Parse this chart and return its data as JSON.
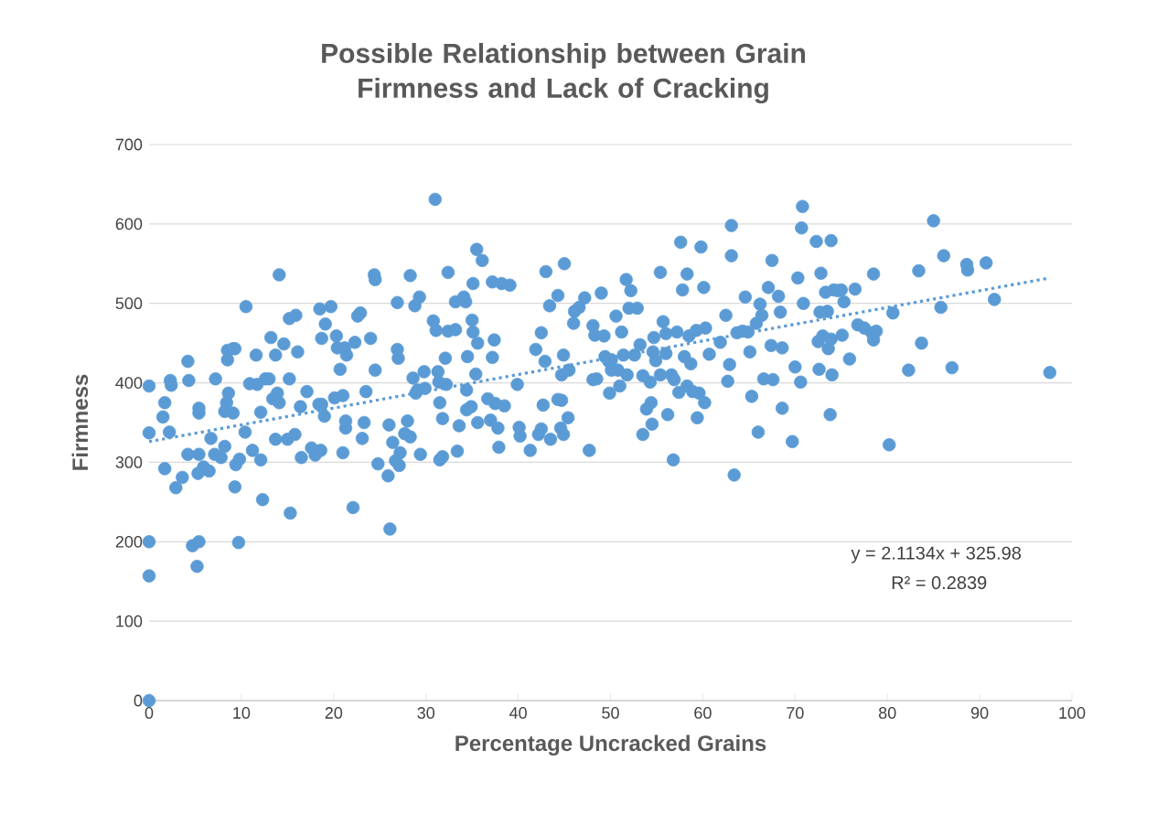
{
  "chart_data": {
    "type": "scatter",
    "title": "Possible Relationship between Grain Firmness and Lack of Cracking",
    "xlabel": "Percentage Uncracked Grains",
    "ylabel": "Firmness",
    "xlim": [
      0,
      100
    ],
    "xticks": [
      0,
      10,
      20,
      30,
      40,
      50,
      60,
      70,
      80,
      90,
      100
    ],
    "ylim": [
      0,
      700
    ],
    "yticks": [
      0,
      100,
      200,
      300,
      400,
      500,
      600,
      700
    ],
    "grid": "y",
    "marker": "circle",
    "annotations": [
      "y = 2.1134x + 325.98",
      "R² = 0.2839"
    ],
    "series": [
      {
        "color": "#5b9bd5",
        "x": [
          0,
          0,
          0,
          0,
          0,
          1.7,
          1.5,
          2.3,
          2.4,
          2.2,
          1.7,
          2.9,
          3.6,
          4.2,
          4.3,
          4.2,
          4.7,
          5.4,
          5.2,
          5.4,
          5.4,
          5.4,
          5.3,
          5.9,
          6.5,
          6.7,
          7.2,
          7.1,
          7.8,
          8.2,
          8.2,
          8.4,
          8.5,
          8.5,
          8.6,
          9.1,
          9.3,
          9.1,
          9.3,
          9.4,
          9.8,
          9.7,
          10.5,
          10.4,
          10.9,
          11.2,
          11.6,
          11.7,
          12.1,
          12.3,
          12.1,
          12.6,
          13.0,
          13.2,
          13.4,
          13.7,
          13.7,
          14.1,
          13.9,
          14.1,
          14.6,
          15.0,
          15.2,
          15.2,
          15.3,
          15.9,
          16.1,
          15.8,
          16.5,
          16.4,
          17.1,
          17.6,
          18.0,
          18.4,
          18.7,
          18.5,
          19.0,
          18.7,
          19.1,
          18.6,
          19.7,
          20.1,
          20.3,
          20.7,
          20.4,
          21.0,
          21.2,
          21.0,
          21.3,
          21.3,
          21.4,
          22.1,
          22.6,
          22.9,
          22.3,
          23.1,
          23.3,
          23.5,
          24.0,
          24.4,
          24.5,
          24.5,
          24.8,
          25.9,
          26.0,
          26.1,
          26.4,
          26.7,
          26.9,
          26.9,
          27.0,
          27.1,
          27.2,
          27.7,
          28.0,
          28.3,
          28.3,
          28.6,
          28.8,
          28.9,
          29.1,
          29.3,
          29.4,
          29.8,
          29.9,
          30.8,
          31.0,
          31.1,
          31.4,
          31.3,
          31.5,
          31.5,
          31.8,
          31.8,
          32.1,
          32.2,
          32.4,
          32.4,
          33.2,
          33.2,
          33.4,
          33.6,
          34.1,
          34.3,
          34.4,
          34.4,
          34.5,
          34.9,
          35.0,
          35.1,
          35.1,
          35.4,
          35.5,
          35.6,
          35.6,
          36.1,
          36.7,
          37.0,
          37.2,
          37.2,
          37.4,
          37.5,
          37.8,
          37.9,
          38.2,
          38.5,
          39.1,
          39.9,
          40.1,
          40.2,
          41.3,
          41.9,
          42.2,
          42.5,
          42.5,
          42.7,
          42.9,
          43.0,
          43.4,
          43.5,
          44.3,
          44.3,
          44.6,
          44.7,
          44.7,
          44.9,
          45.0,
          44.9,
          45.4,
          45.5,
          46.0,
          46.1,
          46.6,
          47.2,
          47.7,
          48.1,
          48.3,
          48.1,
          48.5,
          49.0,
          49.3,
          49.4,
          49.8,
          49.9,
          50.1,
          50.1,
          50.6,
          50.8,
          51.0,
          51.2,
          51.4,
          51.7,
          51.8,
          52.0,
          52.2,
          52.6,
          52.9,
          53.2,
          53.5,
          53.5,
          53.9,
          54.3,
          54.4,
          54.5,
          54.6,
          54.7,
          54.9,
          55.4,
          55.4,
          55.7,
          56.0,
          56.0,
          56.2,
          56.6,
          56.8,
          56.9,
          57.2,
          57.4,
          57.6,
          57.8,
          58.0,
          58.3,
          58.3,
          58.5,
          58.7,
          58.9,
          59.3,
          59.6,
          59.4,
          59.8,
          60.1,
          60.2,
          60.3,
          60.7,
          61.9,
          62.5,
          62.7,
          62.9,
          63.1,
          63.1,
          63.4,
          63.7,
          64.3,
          64.6,
          64.9,
          65.1,
          65.3,
          65.8,
          66.0,
          66.2,
          66.4,
          66.6,
          67.1,
          67.4,
          67.5,
          67.6,
          68.2,
          68.4,
          68.6,
          68.6,
          69.7,
          70.0,
          70.3,
          70.6,
          70.7,
          70.8,
          70.9,
          72.3,
          72.5,
          72.6,
          72.7,
          72.8,
          73.0,
          73.3,
          73.5,
          73.6,
          73.8,
          73.9,
          73.9,
          74.0,
          74.2,
          74.6,
          75.0,
          75.1,
          75.3,
          75.9,
          76.5,
          76.8,
          77.5,
          78.3,
          78.5,
          78.5,
          78.8,
          80.6,
          80.2,
          82.3,
          83.4,
          83.7,
          85.0,
          85.8,
          86.1,
          87.0,
          88.6,
          88.7,
          90.7,
          91.6,
          97.6
        ],
        "values": [
          396,
          337,
          200,
          157,
          0,
          375,
          357,
          403,
          397,
          338,
          292,
          268,
          281,
          427,
          403,
          310,
          195,
          200,
          169,
          368,
          362,
          310,
          286,
          294,
          289,
          330,
          405,
          310,
          306,
          320,
          364,
          375,
          441,
          429,
          387,
          443,
          443,
          362,
          269,
          297,
          304,
          199,
          496,
          338,
          399,
          315,
          435,
          398,
          303,
          253,
          363,
          405,
          405,
          457,
          380,
          435,
          329,
          536,
          387,
          375,
          449,
          329,
          405,
          481,
          236,
          485,
          439,
          335,
          306,
          370,
          389,
          318,
          309,
          373,
          373,
          493,
          358,
          456,
          474,
          315,
          496,
          381,
          459,
          417,
          444,
          384,
          444,
          312,
          343,
          352,
          435,
          243,
          484,
          488,
          451,
          330,
          350,
          389,
          456,
          536,
          530,
          416,
          298,
          283,
          347,
          216,
          325,
          302,
          501,
          442,
          431,
          296,
          312,
          336,
          352,
          535,
          332,
          406,
          497,
          387,
          391,
          508,
          310,
          414,
          393,
          478,
          631,
          466,
          401,
          414,
          375,
          303,
          355,
          307,
          431,
          398,
          539,
          465,
          502,
          467,
          314,
          346,
          508,
          502,
          391,
          366,
          433,
          370,
          479,
          525,
          464,
          411,
          568,
          450,
          350,
          554,
          380,
          353,
          527,
          432,
          454,
          374,
          343,
          319,
          525,
          371,
          523,
          398,
          344,
          333,
          315,
          442,
          335,
          342,
          463,
          372,
          427,
          540,
          497,
          329,
          510,
          379,
          343,
          410,
          378,
          435,
          550,
          335,
          356,
          416,
          475,
          490,
          495,
          507,
          315,
          472,
          460,
          404,
          405,
          513,
          459,
          433,
          427,
          387,
          416,
          429,
          484,
          416,
          396,
          464,
          435,
          530,
          410,
          494,
          516,
          435,
          494,
          448,
          335,
          409,
          367,
          401,
          375,
          348,
          439,
          457,
          428,
          539,
          410,
          477,
          462,
          437,
          360,
          410,
          303,
          404,
          464,
          388,
          577,
          517,
          433,
          537,
          396,
          459,
          424,
          389,
          466,
          387,
          356,
          571,
          520,
          375,
          469,
          436,
          451,
          485,
          402,
          423,
          598,
          560,
          284,
          463,
          465,
          508,
          464,
          439,
          383,
          475,
          338,
          499,
          485,
          405,
          520,
          447,
          554,
          404,
          509,
          489,
          444,
          368,
          326,
          420,
          532,
          401,
          595,
          622,
          500,
          578,
          452,
          417,
          489,
          538,
          459,
          514,
          490,
          443,
          360,
          455,
          579,
          410,
          517,
          516,
          517,
          460,
          502,
          430,
          518,
          473,
          469,
          463,
          537,
          454,
          465,
          488,
          322,
          416,
          541,
          450,
          604,
          495,
          560,
          419,
          549,
          542,
          551,
          505,
          413
        ]
      },
      {
        "type": "line",
        "color": "#5b9bd5",
        "line_style": "dotted",
        "marker": "none",
        "x": [
          0,
          97.6
        ],
        "values": [
          326,
          532
        ]
      }
    ]
  }
}
